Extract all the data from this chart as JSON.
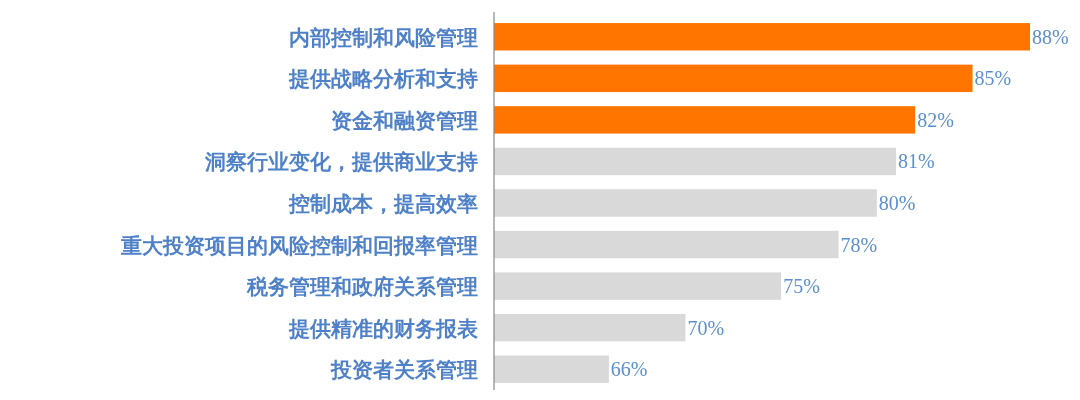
{
  "chart_data": {
    "type": "bar",
    "orientation": "horizontal",
    "categories": [
      "内部控制和风险管理",
      "提供战略分析和支持",
      "资金和融资管理",
      "洞察行业变化，提供商业支持",
      "控制成本，提高效率",
      "重大投资项目的风险控制和回报率管理",
      "税务管理和政府关系管理",
      "提供精准的财务报表",
      "投资者关系管理"
    ],
    "values": [
      88,
      85,
      82,
      81,
      80,
      78,
      75,
      70,
      66
    ],
    "value_labels": [
      "88%",
      "85%",
      "82%",
      "81%",
      "80%",
      "78%",
      "75%",
      "70%",
      "66%"
    ],
    "colors": [
      "#ff7500",
      "#ff7500",
      "#ff7500",
      "#d9d9d9",
      "#d9d9d9",
      "#d9d9d9",
      "#d9d9d9",
      "#d9d9d9",
      "#d9d9d9"
    ],
    "xlim": [
      60,
      88
    ]
  }
}
